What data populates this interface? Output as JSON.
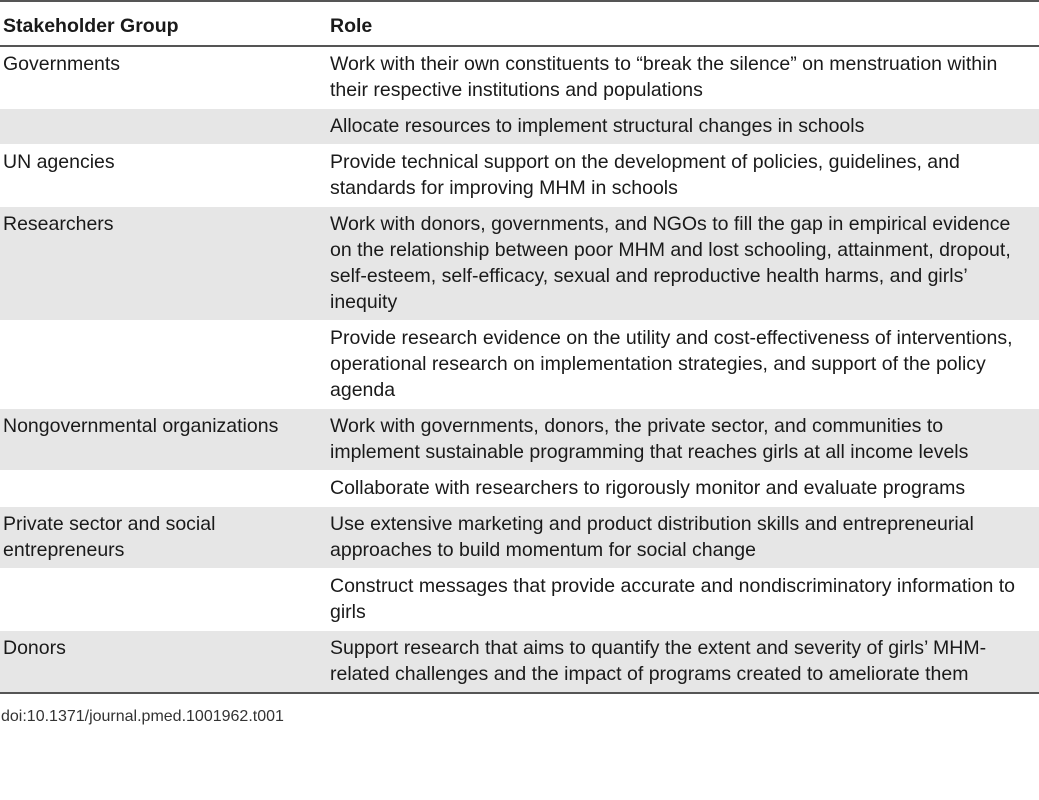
{
  "table": {
    "headers": [
      "Stakeholder Group",
      "Role"
    ],
    "rows": [
      {
        "group": "Governments",
        "role": "Work with their own constituents to “break the silence” on menstruation within their respective institutions and populations"
      },
      {
        "group": "",
        "role": "Allocate resources to implement structural changes in schools"
      },
      {
        "group": "UN agencies",
        "role": "Provide technical support on the development of policies, guidelines, and standards for improving MHM in schools"
      },
      {
        "group": "Researchers",
        "role": "Work with donors, governments, and NGOs to fill the gap in empirical evidence on the relationship between poor MHM and lost schooling, attainment, dropout, self-esteem, self-efficacy, sexual and reproductive health harms, and girls’ inequity"
      },
      {
        "group": "",
        "role": "Provide research evidence on the utility and cost-effectiveness of interventions, operational research on implementation strategies, and support of the policy agenda"
      },
      {
        "group": "Nongovernmental organizations",
        "role": "Work with governments, donors, the private sector, and communities to implement sustainable programming that reaches girls at all income levels"
      },
      {
        "group": "",
        "role": "Collaborate with researchers to rigorously monitor and evaluate programs"
      },
      {
        "group": "Private sector and social entrepreneurs",
        "role": "Use extensive marketing and product distribution skills and entrepreneurial approaches to build momentum for social change"
      },
      {
        "group": "",
        "role": "Construct messages that provide accurate and nondiscriminatory information to girls"
      },
      {
        "group": "Donors",
        "role": "Support research that aims to quantify the extent and severity of girls’ MHM-related challenges and the impact of programs created to ameliorate them"
      }
    ]
  },
  "footer": {
    "doi": "doi:10.1371/journal.pmed.1001962.t001"
  }
}
